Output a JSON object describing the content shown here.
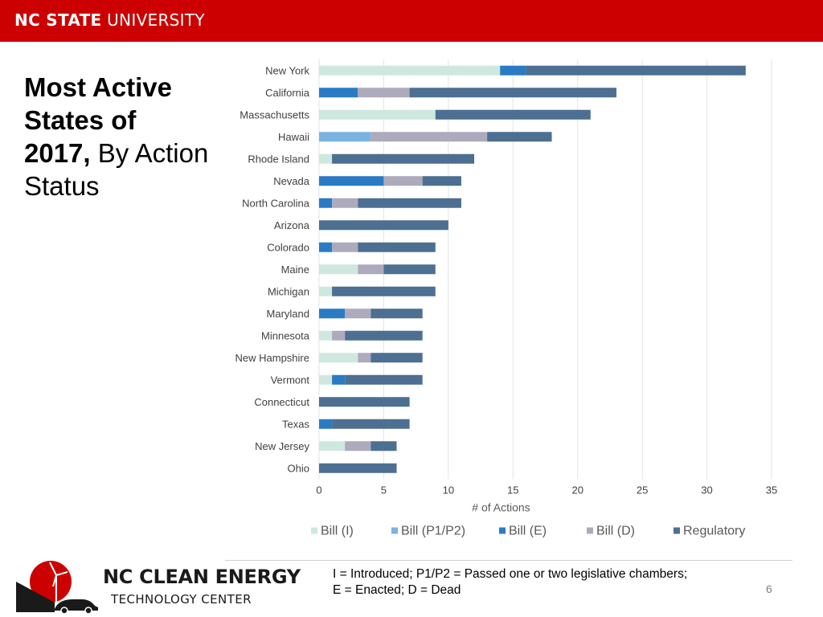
{
  "header": {
    "brand_bold": "NC STATE",
    "brand_light": " UNIVERSITY"
  },
  "slide": {
    "title_bold_1": "Most Active",
    "title_bold_2": "States of",
    "title_bold_3": "2017,",
    "title_rest_3": " By Action",
    "title_rest_4": "Status"
  },
  "footnote": {
    "line1": "I = Introduced; P1/P2 = Passed one or two legislative chambers;",
    "line2": "E = Enacted; D = Dead"
  },
  "page_number": "6",
  "logo": {
    "line1": "NC CLEAN ENERGY",
    "line2": "TECHNOLOGY CENTER"
  },
  "chart_data": {
    "type": "bar",
    "orientation": "horizontal",
    "stacked": true,
    "categories": [
      "New York",
      "California",
      "Massachusetts",
      "Hawaii",
      "Rhode Island",
      "Nevada",
      "North Carolina",
      "Arizona",
      "Colorado",
      "Maine",
      "Michigan",
      "Maryland",
      "Minnesota",
      "New Hampshire",
      "Vermont",
      "Connecticut",
      "Texas",
      "New Jersey",
      "Ohio"
    ],
    "series": [
      {
        "name": "Bill (I)",
        "color": "#cfe8df",
        "values": [
          14,
          0,
          9,
          0,
          1,
          0,
          0,
          0,
          0,
          3,
          1,
          0,
          1,
          3,
          1,
          0,
          0,
          2,
          0
        ]
      },
      {
        "name": "Bill (P1/P2)",
        "color": "#7ab4e0",
        "values": [
          0,
          0,
          0,
          4,
          0,
          0,
          0,
          0,
          0,
          0,
          0,
          0,
          0,
          0,
          0,
          0,
          0,
          0,
          0
        ]
      },
      {
        "name": "Bill (E)",
        "color": "#2a7bc4",
        "values": [
          2,
          3,
          0,
          0,
          0,
          5,
          1,
          0,
          1,
          0,
          0,
          2,
          0,
          0,
          1,
          0,
          1,
          0,
          0
        ]
      },
      {
        "name": "Bill (D)",
        "color": "#aeaabd",
        "values": [
          0,
          4,
          0,
          9,
          0,
          3,
          2,
          0,
          2,
          2,
          0,
          2,
          1,
          1,
          0,
          0,
          0,
          2,
          0
        ]
      },
      {
        "name": "Regulatory",
        "color": "#4c6f92",
        "values": [
          17,
          16,
          12,
          5,
          11,
          3,
          8,
          10,
          6,
          4,
          8,
          4,
          6,
          4,
          6,
          7,
          6,
          2,
          6
        ]
      }
    ],
    "xlabel": "# of Actions",
    "xlim": [
      0,
      35
    ],
    "xticks": [
      0,
      5,
      10,
      15,
      20,
      25,
      30,
      35
    ],
    "grid": "vertical",
    "legend": "bottom"
  }
}
